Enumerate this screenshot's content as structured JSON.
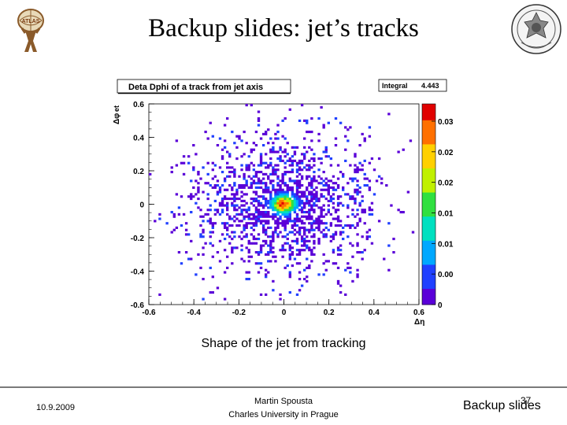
{
  "slide": {
    "title": "Backup slides: jet’s tracks",
    "caption": "Shape of the jet from tracking",
    "footer": {
      "date": "10.9.2009",
      "author_line1": "Martin Spousta",
      "author_line2": "Charles University in Prague",
      "page_number": "37",
      "section": "Backup slides"
    },
    "logos": {
      "left": "atlas-logo-icon",
      "right": "charles-university-seal-icon"
    }
  },
  "chart_data": {
    "type": "heatmap",
    "title": "Deta Dphi of a track from jet axis",
    "stats_box": {
      "label": "Integral",
      "value": "4.443"
    },
    "xlabel": "Δη",
    "ylabel": "Δφ",
    "ylabel_extra": "et",
    "xlim": [
      -0.6,
      0.6
    ],
    "ylim": [
      -0.6,
      0.6
    ],
    "x_ticks": [
      "-0.6",
      "-0.4",
      "-0.2",
      "0",
      "0.2",
      "0.4",
      "0.6"
    ],
    "y_ticks": [
      "0.6",
      "0.4",
      "0.2",
      "0",
      "-0.2",
      "-0.4",
      "-0.6"
    ],
    "zlim": [
      0,
      0.035
    ],
    "z_ticks": [
      "0.03",
      "0.02",
      "0.02",
      "0.01",
      "0.01",
      "0.00",
      "0"
    ],
    "distribution": {
      "shape": "gaussian core with broad halo",
      "peak": [
        0.0,
        0.0
      ],
      "core_sigma": 0.035,
      "halo_radius": 0.4
    },
    "palette": [
      "#5a00d8",
      "#2040ff",
      "#00a8ff",
      "#00e0c0",
      "#30e040",
      "#c0f000",
      "#ffd000",
      "#ff7000",
      "#e00000"
    ]
  }
}
